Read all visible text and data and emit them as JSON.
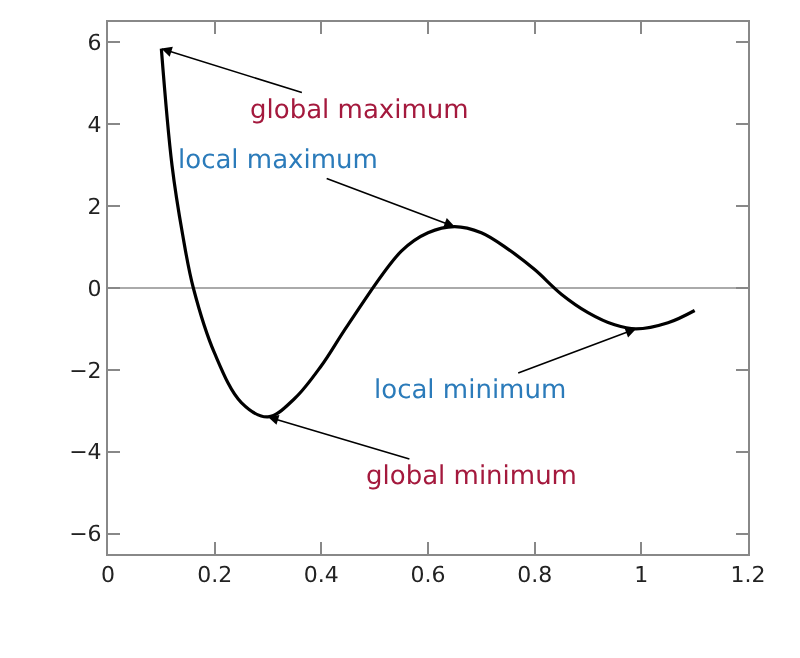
{
  "chart_data": {
    "type": "line",
    "x": [
      0.1,
      0.12,
      0.14,
      0.16,
      0.2,
      0.25,
      0.3,
      0.35,
      0.4,
      0.45,
      0.55,
      0.6,
      0.65,
      0.7,
      0.75,
      0.8,
      0.85,
      0.9,
      0.95,
      0.99,
      1.05,
      1.1
    ],
    "series": [
      {
        "color": "#000000",
        "values": [
          5.85,
          3.0,
          1.3,
          0.0,
          -1.6,
          -2.8,
          -3.15,
          -2.7,
          -1.9,
          -0.9,
          0.9,
          1.35,
          1.5,
          1.35,
          0.95,
          0.45,
          -0.15,
          -0.6,
          -0.9,
          -1.0,
          -0.85,
          -0.55
        ]
      }
    ],
    "xlim": [
      0,
      1.2
    ],
    "xticks": [
      0,
      0.2,
      0.4,
      0.6,
      0.8,
      1,
      1.2
    ],
    "ylim": [
      -6.5,
      6.5
    ],
    "yticks": [
      -6,
      -4,
      -2,
      0,
      2,
      4,
      6
    ],
    "ref_lines": [
      {
        "axis": "y",
        "value": 0,
        "color": "#aaaaaa"
      }
    ],
    "annotations": [
      {
        "text": "global maximum",
        "x": 0.1,
        "y": 5.85
      },
      {
        "text": "local maximum",
        "x": 0.65,
        "y": 1.5
      },
      {
        "text": "local minimum",
        "x": 0.99,
        "y": -1.0
      },
      {
        "text": "global minimum",
        "x": 0.3,
        "y": -3.15
      }
    ],
    "grid": false,
    "marker": "none",
    "line_style": "solid"
  }
}
